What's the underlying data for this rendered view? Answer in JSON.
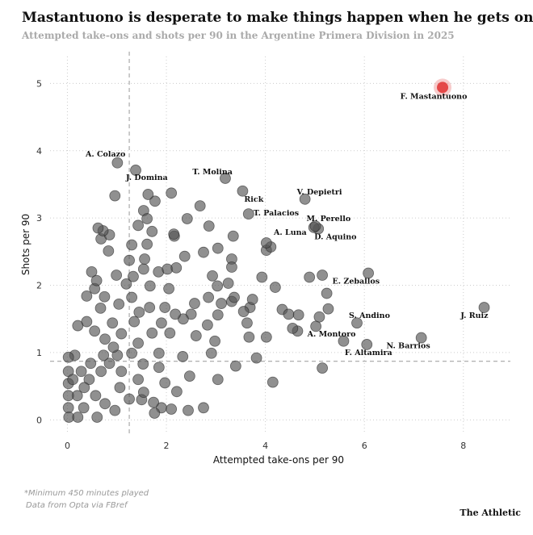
{
  "chart_data": {
    "type": "scatter",
    "title": "Mastantuono is desperate to make things happen when he gets on the ball",
    "subtitle": "Attempted take-ons and shots per 90 in the Argentine Primera Division in 2025",
    "x_label": "Attempted take-ons per 90",
    "y_label": "Shots per 90",
    "notes": [
      "*Minimum 450 minutes played",
      "Data from Opta via FBref"
    ],
    "source": "The Athletic",
    "xlim": [
      -0.35,
      8.95
    ],
    "ylim": [
      -0.2,
      5.4
    ],
    "xticks": [
      0,
      2,
      4,
      6,
      8
    ],
    "yticks": [
      0,
      1,
      2,
      3,
      4,
      5
    ],
    "grid": true,
    "reference_lines": {
      "x": 1.25,
      "y": 0.87
    },
    "color": "#555555",
    "highlight_color": "#e03131",
    "highlight_index": 0,
    "labels": [
      "F. Mastantuono",
      "A. Colazo",
      "J. Domina",
      "T. Molina",
      "Rick",
      "T. Palacios",
      "V. Depietri",
      "M. Perello",
      "A. Luna",
      "D. Aquino",
      "E. Zeballos",
      "J. Ruiz",
      "S. Andino",
      "A. Montoro",
      "F. Altamira",
      "N. Barrios",
      null,
      null,
      null,
      null,
      null,
      null,
      null,
      null,
      null,
      null,
      null,
      null,
      null,
      null,
      null,
      null,
      null,
      null,
      null,
      null,
      null,
      null,
      null,
      null,
      null,
      null,
      null,
      null,
      null,
      null,
      null,
      null,
      null,
      null,
      null,
      null,
      null,
      null,
      null,
      null,
      null,
      null,
      null,
      null,
      null,
      null,
      null,
      null,
      null,
      null,
      null,
      null,
      null,
      null,
      null,
      null,
      null,
      null,
      null,
      null,
      null,
      null,
      null,
      null,
      null,
      null,
      null,
      null,
      null,
      null,
      null,
      null,
      null,
      null,
      null,
      null,
      null,
      null,
      null,
      null,
      null,
      null,
      null,
      null,
      null,
      null,
      null,
      null,
      null,
      null,
      null,
      null,
      null,
      null,
      null,
      null,
      null,
      null,
      null,
      null,
      null,
      null,
      null,
      null,
      null,
      null,
      null,
      null,
      null,
      null,
      null,
      null,
      null,
      null,
      null,
      null,
      null,
      null,
      null,
      null,
      null,
      null,
      null,
      null,
      null,
      null,
      null,
      null,
      null,
      null
    ],
    "x": [
      7.58,
      1.01,
      1.38,
      3.19,
      3.54,
      3.66,
      4.8,
      5.01,
      4.98,
      5.07,
      6.08,
      8.42,
      5.85,
      5.58,
      6.05,
      7.15,
      4.02,
      4.11,
      4.02,
      3.93,
      4.2,
      4.89,
      5.15,
      5.24,
      5.27,
      5.09,
      5.02,
      4.67,
      4.47,
      4.34,
      4.55,
      4.65,
      5.15,
      4.15,
      3.82,
      3.67,
      4.02,
      3.4,
      3.63,
      3.56,
      3.74,
      3.69,
      3.37,
      3.32,
      3.25,
      3.32,
      3.35,
      3.32,
      3.04,
      2.75,
      2.93,
      3.03,
      3.11,
      2.85,
      3.04,
      2.83,
      2.98,
      2.91,
      3.04,
      2.75,
      2.86,
      2.68,
      2.42,
      2.15,
      2.1,
      2.16,
      2.37,
      2.2,
      2.02,
      2.05,
      1.97,
      2.18,
      2.07,
      2.34,
      2.5,
      2.57,
      2.6,
      2.33,
      2.47,
      2.21,
      2.1,
      2.44,
      1.97,
      1.85,
      1.85,
      1.71,
      1.9,
      1.66,
      1.67,
      1.84,
      1.61,
      1.71,
      1.61,
      1.54,
      1.63,
      1.77,
      1.43,
      1.56,
      1.54,
      1.33,
      1.3,
      1.45,
      1.35,
      1.43,
      1.3,
      1.53,
      1.43,
      1.54,
      1.74,
      1.76,
      1.25,
      1.3,
      1.25,
      0.96,
      0.99,
      1.04,
      1.09,
      0.91,
      0.75,
      0.62,
      0.72,
      0.85,
      0.68,
      0.83,
      0.59,
      0.49,
      0.55,
      0.67,
      0.39,
      0.21,
      0.39,
      0.55,
      0.76,
      0.93,
      0.73,
      0.47,
      0.28,
      0.11,
      0.34,
      0.57,
      0.76,
      0.96,
      0.6,
      0.21,
      0.03,
      0.02,
      0.02,
      0.02,
      0.02,
      0.02,
      0.15,
      0.2,
      0.33,
      0.44,
      0.68,
      0.85,
      1.01,
      1.09,
      1.06,
      1.5,
      1.9,
      1.19
    ],
    "values": [
      4.94,
      3.82,
      3.71,
      3.59,
      3.4,
      3.06,
      3.28,
      2.88,
      2.86,
      2.84,
      2.18,
      1.67,
      1.44,
      1.17,
      1.12,
      1.22,
      2.63,
      2.57,
      2.52,
      2.12,
      1.97,
      2.12,
      2.15,
      1.88,
      1.65,
      1.53,
      1.39,
      1.56,
      1.57,
      1.64,
      1.36,
      1.32,
      0.77,
      0.56,
      0.92,
      1.23,
      1.23,
      0.8,
      1.44,
      1.61,
      1.79,
      1.67,
      1.82,
      1.76,
      2.03,
      2.27,
      2.73,
      2.39,
      2.55,
      2.49,
      2.14,
      1.99,
      1.73,
      1.82,
      1.56,
      1.41,
      1.17,
      0.99,
      0.6,
      0.18,
      2.88,
      3.18,
      2.99,
      2.76,
      3.37,
      2.73,
      2.43,
      2.26,
      2.24,
      1.95,
      1.67,
      1.57,
      1.29,
      1.5,
      1.57,
      1.73,
      1.25,
      0.94,
      0.65,
      0.42,
      0.16,
      0.14,
      0.55,
      0.78,
      0.99,
      1.29,
      1.44,
      1.67,
      1.99,
      2.2,
      2.61,
      2.8,
      2.99,
      3.11,
      3.35,
      3.25,
      2.89,
      2.39,
      2.24,
      2.13,
      1.82,
      1.6,
      1.46,
      1.14,
      0.99,
      0.83,
      0.6,
      0.41,
      0.26,
      0.1,
      0.31,
      2.6,
      2.37,
      3.33,
      2.15,
      1.72,
      1.28,
      1.44,
      1.83,
      2.85,
      2.81,
      2.75,
      2.69,
      2.51,
      2.07,
      2.2,
      1.95,
      1.66,
      1.84,
      1.4,
      1.46,
      1.32,
      1.2,
      1.08,
      0.96,
      0.84,
      0.72,
      0.6,
      0.48,
      0.36,
      0.24,
      0.14,
      0.04,
      0.04,
      0.04,
      0.18,
      0.36,
      0.54,
      0.72,
      0.93,
      0.96,
      0.36,
      0.18,
      0.6,
      0.72,
      0.84,
      0.96,
      0.72,
      0.48,
      0.3,
      0.18,
      2.02
    ]
  }
}
